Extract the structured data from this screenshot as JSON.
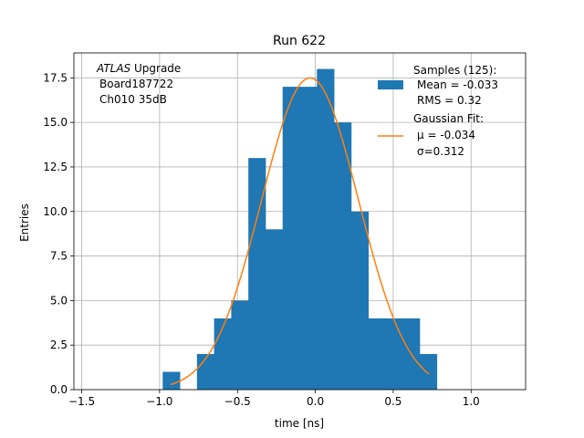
{
  "chart_data": {
    "type": "bar",
    "title": "Run 622",
    "xlabel": "time [ns]",
    "ylabel": "Entries",
    "xlim": [
      -1.55,
      1.35
    ],
    "ylim": [
      0,
      18.9
    ],
    "xticks": [
      -1.5,
      -1.0,
      -0.5,
      0.0,
      0.5,
      1.0
    ],
    "xtick_labels": [
      "−1.5",
      "−1.0",
      "−0.5",
      "0.0",
      "0.5",
      "1.0"
    ],
    "yticks": [
      0.0,
      2.5,
      5.0,
      7.5,
      10.0,
      12.5,
      15.0,
      17.5
    ],
    "ytick_labels": [
      "0.0",
      "2.5",
      "5.0",
      "7.5",
      "10.0",
      "12.5",
      "15.0",
      "17.5"
    ],
    "grid": true,
    "histogram": {
      "name": "Samples (125):",
      "color": "#1f77b4",
      "bin_edges": [
        -0.98,
        -0.87,
        -0.76,
        -0.65,
        -0.54,
        -0.43,
        -0.32,
        -0.21,
        -0.1,
        0.01,
        0.12,
        0.23,
        0.34,
        0.45,
        0.56,
        0.67,
        0.78
      ],
      "counts": [
        1,
        0,
        2,
        4,
        5,
        13,
        9,
        17,
        17,
        18,
        15,
        10,
        4,
        4,
        4,
        2
      ]
    },
    "fit": {
      "name": "Gaussian Fit:",
      "color": "#ff7f0e",
      "mu": -0.034,
      "sigma": 0.312,
      "amplitude": 17.5,
      "x_range": [
        -0.93,
        0.73
      ]
    },
    "legend": {
      "position": "top-right",
      "entries": [
        {
          "label": "Samples (125):",
          "lines": [
            "Mean = -0.033",
            "RMS = 0.32"
          ],
          "marker": "patch",
          "color": "#1f77b4"
        },
        {
          "label": "Gaussian Fit:",
          "lines": [
            "μ = -0.034",
            "σ=0.312"
          ],
          "marker": "line",
          "color": "#ff7f0e"
        }
      ]
    },
    "annotation": {
      "position": "top-left",
      "italic": "ATLAS",
      "rest": " Upgrade",
      "lines": [
        "Board187722",
        "Ch010 35dB"
      ]
    }
  }
}
